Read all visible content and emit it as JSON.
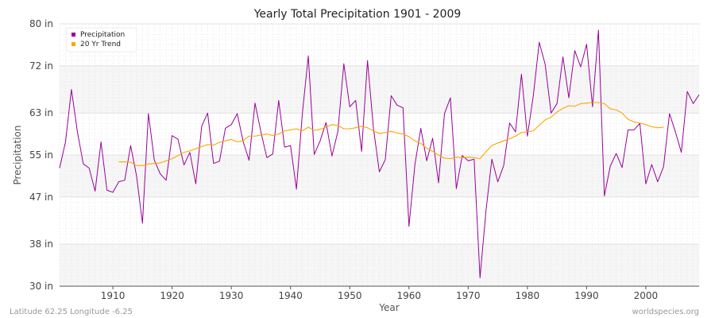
{
  "chart_data": {
    "type": "line",
    "title": "Yearly Total Precipitation 1901 - 2009",
    "xlabel": "Year",
    "ylabel": "Precipitation",
    "xlim": [
      1901,
      2009
    ],
    "ylim": [
      30,
      80
    ],
    "x_ticks": [
      1910,
      1920,
      1930,
      1940,
      1950,
      1960,
      1970,
      1980,
      1990,
      2000
    ],
    "y_ticks": [
      {
        "value": 30,
        "label": "30 in"
      },
      {
        "value": 38,
        "label": "38 in"
      },
      {
        "value": 47,
        "label": "47 in"
      },
      {
        "value": 55,
        "label": "55 in"
      },
      {
        "value": 63,
        "label": "63 in"
      },
      {
        "value": 72,
        "label": "72 in"
      },
      {
        "value": 80,
        "label": "80 in"
      }
    ],
    "grid": true,
    "legend_position": "top-left",
    "series": [
      {
        "name": "Precipitation",
        "color": "#990099",
        "x_start": 1901,
        "values": [
          52.5,
          57.5,
          67.5,
          59.5,
          53.3,
          52.5,
          48.1,
          57.5,
          48.3,
          47.9,
          49.9,
          50.2,
          56.8,
          51.0,
          42.0,
          62.9,
          54.0,
          51.4,
          50.2,
          58.7,
          58.0,
          53.1,
          55.5,
          49.5,
          60.5,
          63.0,
          53.4,
          53.8,
          60.1,
          60.8,
          62.9,
          57.6,
          54.0,
          64.9,
          59.4,
          54.5,
          55.2,
          65.4,
          56.5,
          56.8,
          48.5,
          62.9,
          73.9,
          55.1,
          57.7,
          61.2,
          54.8,
          59.5,
          72.4,
          64.2,
          65.4,
          55.7,
          73.0,
          60.1,
          51.8,
          54.1,
          66.3,
          64.5,
          64.0,
          41.4,
          53.1,
          60.1,
          53.9,
          58.2,
          49.7,
          62.9,
          65.9,
          48.6,
          54.9,
          53.9,
          54.2,
          31.6,
          44.3,
          54.2,
          49.9,
          53.0,
          61.1,
          59.4,
          70.4,
          58.6,
          66.3,
          76.5,
          72.3,
          63.0,
          64.8,
          73.7,
          65.9,
          74.9,
          71.8,
          76.1,
          64.2,
          78.8,
          47.2,
          52.9,
          55.3,
          52.6,
          59.8,
          59.8,
          61.0,
          49.5,
          53.2,
          49.9,
          52.8,
          62.9,
          59.4,
          55.5,
          67.1,
          64.8,
          66.5
        ]
      },
      {
        "name": "20 Yr Trend",
        "color": "#ffa500",
        "x_start": 1911,
        "values": [
          53.7,
          53.7,
          53.6,
          53.0,
          53.0,
          53.3,
          53.4,
          53.5,
          53.9,
          54.3,
          54.9,
          55.5,
          55.8,
          56.2,
          56.6,
          57.0,
          56.9,
          57.4,
          57.7,
          58.0,
          57.5,
          57.7,
          58.6,
          58.6,
          58.8,
          59.0,
          58.7,
          59.0,
          59.6,
          59.8,
          60.0,
          59.6,
          60.3,
          59.7,
          59.9,
          60.3,
          60.8,
          60.6,
          60.0,
          60.0,
          60.2,
          60.5,
          60.2,
          59.6,
          59.1,
          59.3,
          59.5,
          59.2,
          59.0,
          58.5,
          57.7,
          57.2,
          56.3,
          55.7,
          55.0,
          54.4,
          54.3,
          54.6,
          54.5,
          54.6,
          54.5,
          54.3,
          55.6,
          56.8,
          57.3,
          57.7,
          58.1,
          58.6,
          59.3,
          59.4,
          59.6,
          60.7,
          61.7,
          62.2,
          63.2,
          63.9,
          64.4,
          64.3,
          64.8,
          64.9,
          65.0,
          65.0,
          64.8,
          63.8,
          63.6,
          63.0,
          61.8,
          61.3,
          61.1,
          60.8,
          60.4,
          60.2,
          60.3
        ]
      }
    ]
  },
  "footer": {
    "left": "Latitude 62.25 Longitude -6.25",
    "right": "worldspecies.org"
  }
}
